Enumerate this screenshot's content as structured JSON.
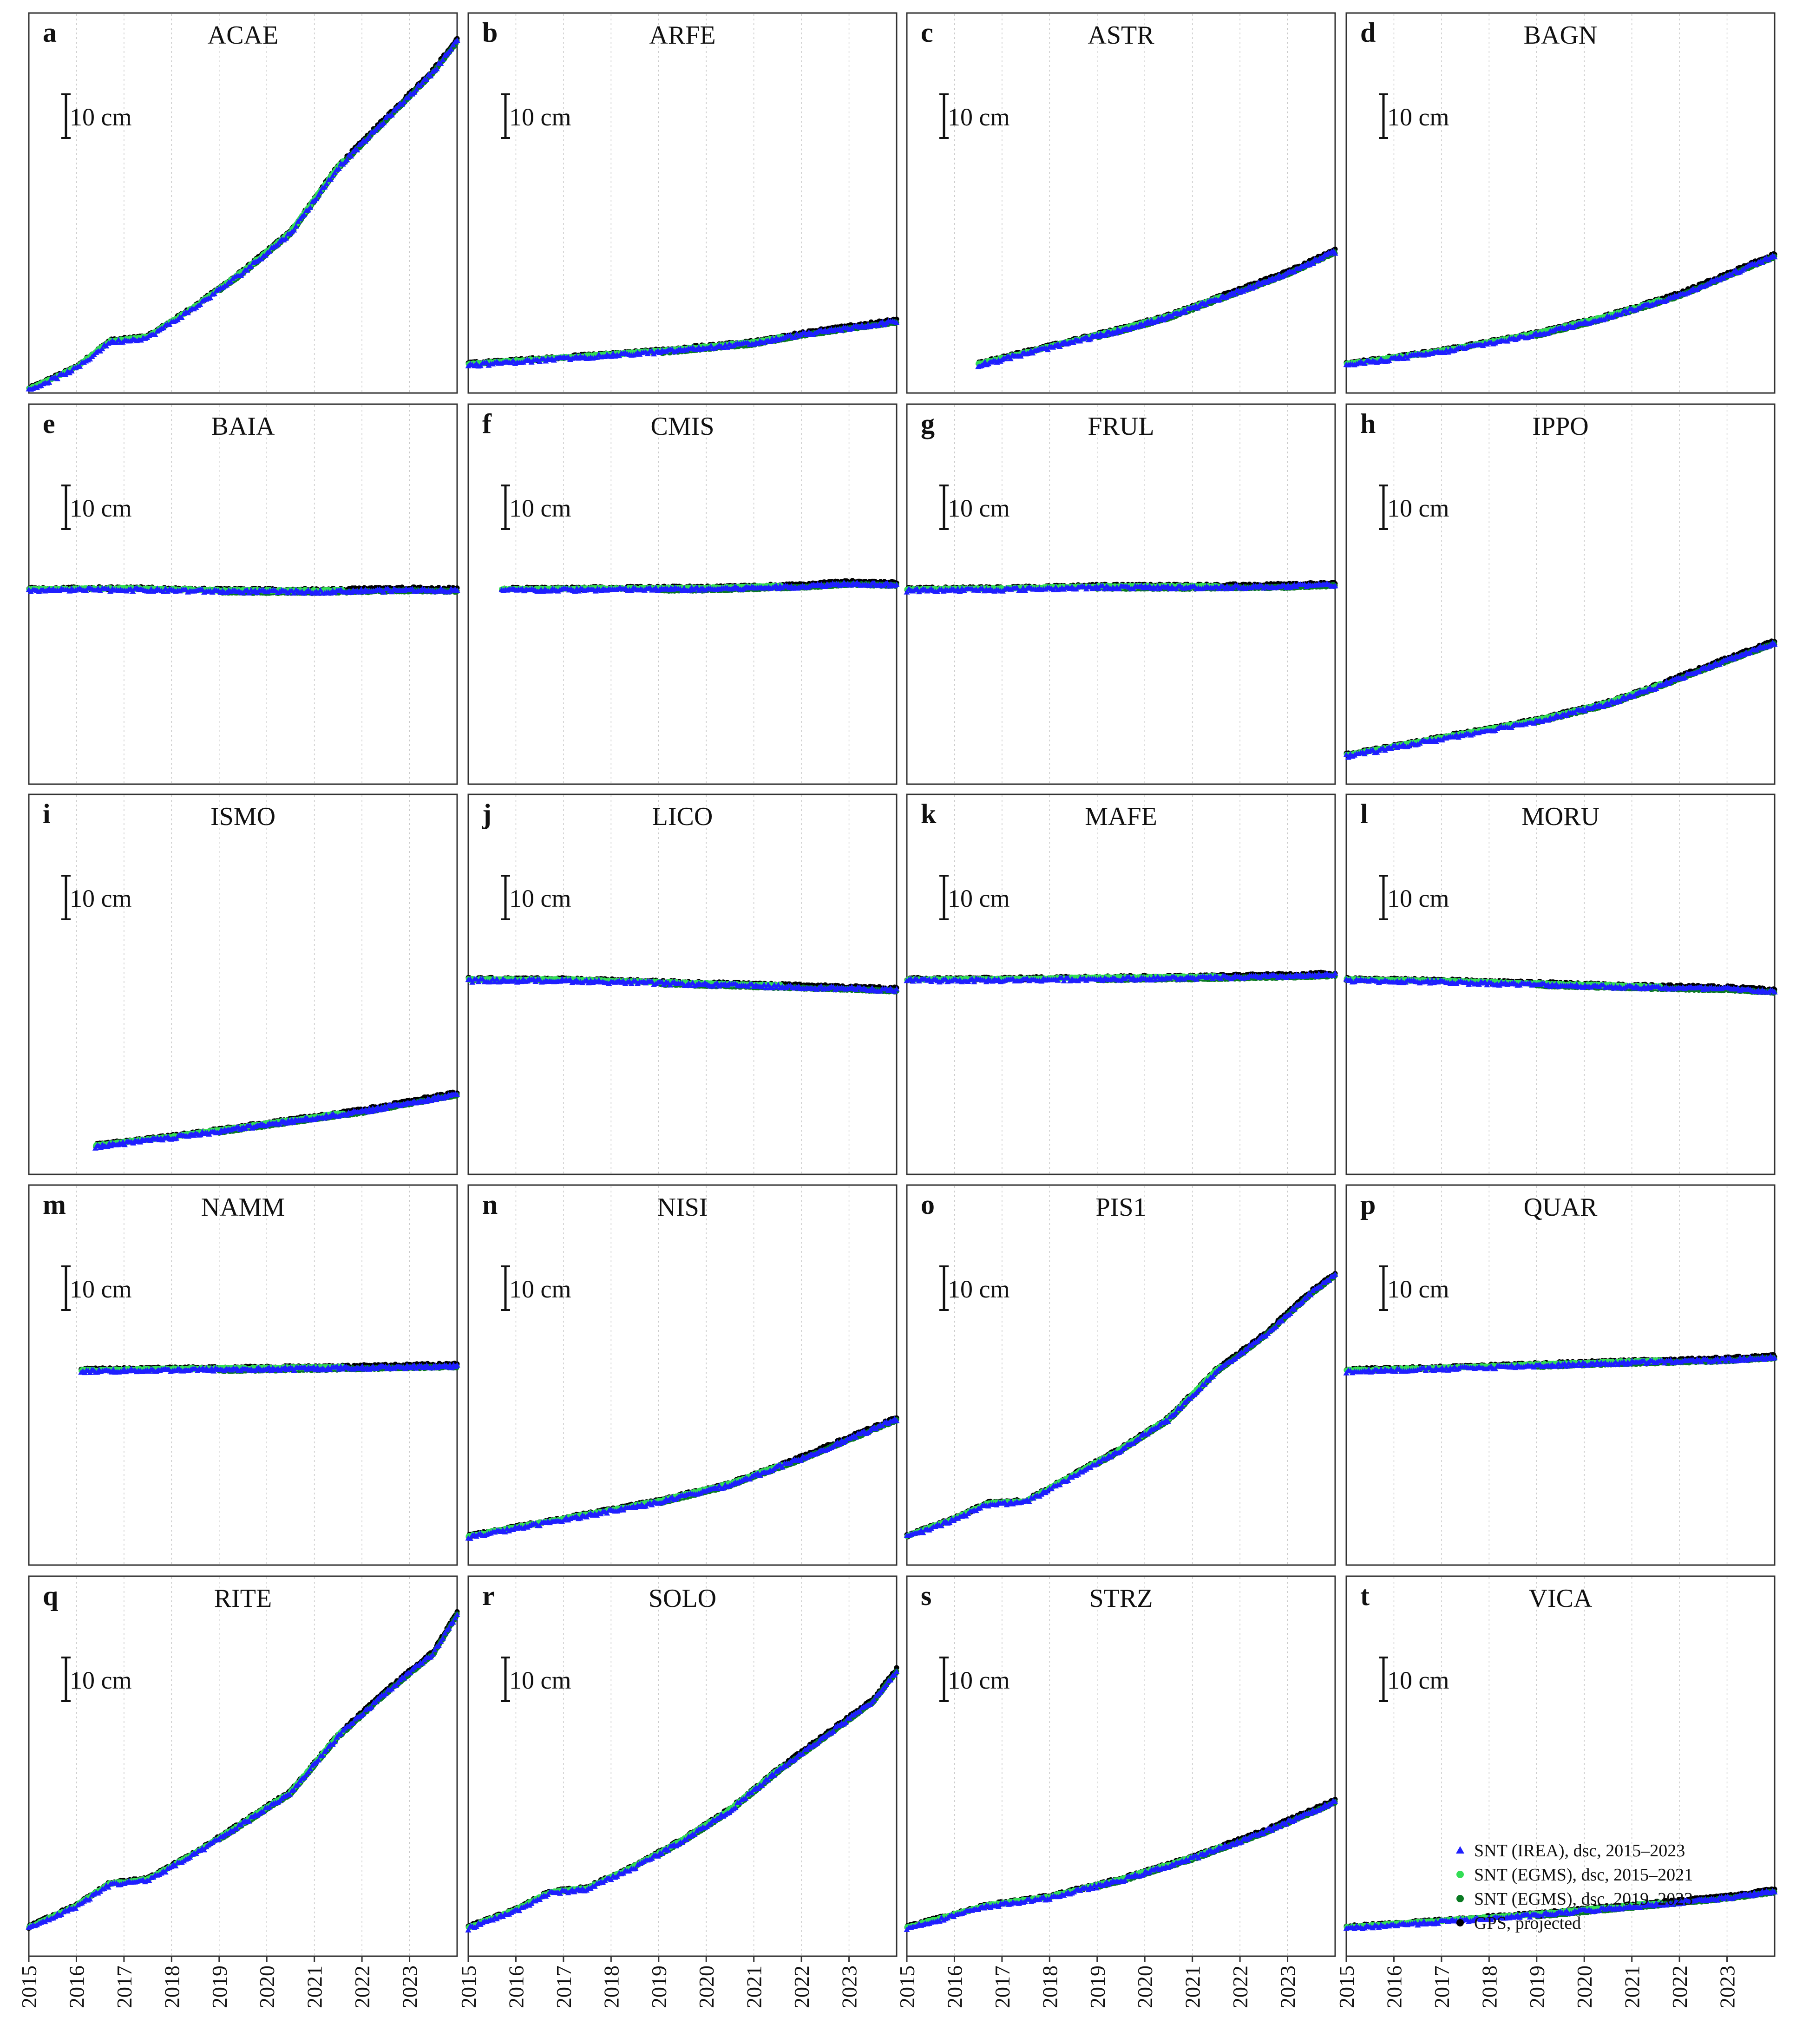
{
  "chart_data": {
    "type": "scatter",
    "x_unit": "year",
    "xlim": [
      2015.0,
      2024.0
    ],
    "x_ticks": [
      2015,
      2016,
      2017,
      2018,
      2019,
      2020,
      2021,
      2022,
      2023
    ],
    "x_tick_labels": [
      "2015",
      "2016",
      "2017",
      "2018",
      "2019",
      "2020",
      "2021",
      "2022",
      "2023"
    ],
    "y_unit": "cm",
    "ylim": [
      -20,
      60
    ],
    "scale_bar_label": "10 cm",
    "scale_bar_value": 10,
    "legend": [
      {
        "key": "irea",
        "label": "SNT (IREA), dsc, 2015–2023",
        "color": "#1f1fff",
        "marker": "triangle"
      },
      {
        "key": "egms1",
        "label": "SNT (EGMS), dsc, 2015–2021",
        "color": "#33dd55",
        "marker": "circle"
      },
      {
        "key": "egms2",
        "label": "SNT (EGMS), dsc, 2019–2023",
        "color": "#0a7a22",
        "marker": "circle"
      },
      {
        "key": "gps",
        "label": "GPS, projected",
        "color": "#000000",
        "marker": "circle"
      }
    ],
    "panels": [
      {
        "letter": "a",
        "station": "ACAE",
        "start": 2015.0,
        "y": [
          [
            2015.0,
            0
          ],
          [
            2016.0,
            5
          ],
          [
            2016.7,
            11
          ],
          [
            2017.5,
            12
          ],
          [
            2018.5,
            19
          ],
          [
            2019.5,
            27
          ],
          [
            2020.5,
            36
          ],
          [
            2021.5,
            51
          ],
          [
            2022.5,
            62
          ],
          [
            2023.5,
            73
          ],
          [
            2024.0,
            80
          ]
        ]
      },
      {
        "letter": "b",
        "station": "ARFE",
        "start": 2015.0,
        "y": [
          [
            2015.0,
            0
          ],
          [
            2017.0,
            1.5
          ],
          [
            2019.0,
            3
          ],
          [
            2021.0,
            5
          ],
          [
            2022.0,
            7
          ],
          [
            2024.0,
            10
          ]
        ]
      },
      {
        "letter": "c",
        "station": "ASTR",
        "start": 2016.5,
        "y": [
          [
            2016.5,
            0
          ],
          [
            2018.0,
            4
          ],
          [
            2019.5,
            8
          ],
          [
            2020.5,
            11
          ],
          [
            2022.0,
            17
          ],
          [
            2023.0,
            21
          ],
          [
            2024.0,
            26
          ]
        ]
      },
      {
        "letter": "d",
        "station": "BAGN",
        "start": 2015.0,
        "y": [
          [
            2015.0,
            0
          ],
          [
            2017.0,
            3
          ],
          [
            2019.0,
            7
          ],
          [
            2020.5,
            11
          ],
          [
            2022.0,
            16
          ],
          [
            2024.0,
            25
          ]
        ]
      },
      {
        "letter": "e",
        "station": "BAIA",
        "start": 2015.0,
        "y": [
          [
            2015.0,
            0
          ],
          [
            2017.0,
            0.2
          ],
          [
            2019.0,
            -0.2
          ],
          [
            2021.0,
            -0.3
          ],
          [
            2023.0,
            0.1
          ],
          [
            2024.0,
            0
          ]
        ]
      },
      {
        "letter": "f",
        "station": "CMIS",
        "start": 2015.7,
        "y": [
          [
            2015.7,
            0
          ],
          [
            2018.0,
            0.2
          ],
          [
            2020.0,
            0.3
          ],
          [
            2022.0,
            0.9
          ],
          [
            2023.0,
            1.6
          ],
          [
            2024.0,
            1.3
          ]
        ]
      },
      {
        "letter": "g",
        "station": "FRUL",
        "start": 2015.0,
        "y": [
          [
            2015.0,
            0
          ],
          [
            2017.0,
            0.2
          ],
          [
            2019.0,
            0.7
          ],
          [
            2021.0,
            0.7
          ],
          [
            2023.0,
            0.9
          ],
          [
            2024.0,
            1.3
          ]
        ]
      },
      {
        "letter": "h",
        "station": "IPPO",
        "start": 2015.0,
        "y": [
          [
            2015.0,
            0
          ],
          [
            2017.0,
            4
          ],
          [
            2019.0,
            8
          ],
          [
            2020.5,
            12
          ],
          [
            2021.3,
            15
          ],
          [
            2022.5,
            20
          ],
          [
            2024.0,
            26
          ]
        ]
      },
      {
        "letter": "i",
        "station": "ISMO",
        "start": 2016.4,
        "y": [
          [
            2016.4,
            0
          ],
          [
            2018.0,
            2
          ],
          [
            2020.0,
            5
          ],
          [
            2022.0,
            8
          ],
          [
            2024.0,
            12
          ]
        ]
      },
      {
        "letter": "j",
        "station": "LICO",
        "start": 2015.0,
        "y": [
          [
            2015.0,
            0
          ],
          [
            2017.0,
            0
          ],
          [
            2019.0,
            -0.6
          ],
          [
            2021.0,
            -1.2
          ],
          [
            2023.0,
            -1.8
          ],
          [
            2024.0,
            -2.2
          ]
        ]
      },
      {
        "letter": "k",
        "station": "MAFE",
        "start": 2015.0,
        "y": [
          [
            2015.0,
            0
          ],
          [
            2017.0,
            0.1
          ],
          [
            2019.0,
            0.4
          ],
          [
            2021.0,
            0.6
          ],
          [
            2023.0,
            1.0
          ],
          [
            2024.0,
            1.3
          ]
        ]
      },
      {
        "letter": "l",
        "station": "MORU",
        "start": 2015.0,
        "y": [
          [
            2015.0,
            0
          ],
          [
            2017.0,
            -0.3
          ],
          [
            2019.0,
            -0.9
          ],
          [
            2021.0,
            -1.5
          ],
          [
            2023.0,
            -1.9
          ],
          [
            2024.0,
            -2.5
          ]
        ]
      },
      {
        "letter": "m",
        "station": "NAMM",
        "start": 2016.1,
        "y": [
          [
            2016.1,
            0
          ],
          [
            2018.0,
            0.3
          ],
          [
            2020.0,
            0.5
          ],
          [
            2022.0,
            0.8
          ],
          [
            2024.0,
            1.2
          ]
        ]
      },
      {
        "letter": "n",
        "station": "NISI",
        "start": 2015.0,
        "y": [
          [
            2015.0,
            0
          ],
          [
            2017.0,
            4
          ],
          [
            2019.0,
            8
          ],
          [
            2020.5,
            12
          ],
          [
            2022.0,
            18
          ],
          [
            2024.0,
            27
          ]
        ]
      },
      {
        "letter": "o",
        "station": "PIS1",
        "start": 2015.0,
        "y": [
          [
            2015.0,
            0
          ],
          [
            2016.0,
            4
          ],
          [
            2016.7,
            7.5
          ],
          [
            2017.5,
            8
          ],
          [
            2018.5,
            14
          ],
          [
            2019.5,
            20
          ],
          [
            2020.5,
            27
          ],
          [
            2021.5,
            38
          ],
          [
            2022.5,
            46
          ],
          [
            2023.5,
            56
          ],
          [
            2024.0,
            60
          ]
        ]
      },
      {
        "letter": "p",
        "station": "QUAR",
        "start": 2015.0,
        "y": [
          [
            2015.0,
            0
          ],
          [
            2017.0,
            0.5
          ],
          [
            2019.0,
            1.3
          ],
          [
            2021.0,
            2.0
          ],
          [
            2023.0,
            2.6
          ],
          [
            2024.0,
            3.2
          ]
        ]
      },
      {
        "letter": "q",
        "station": "RITE",
        "start": 2015.0,
        "y": [
          [
            2015.0,
            0
          ],
          [
            2016.0,
            5
          ],
          [
            2016.7,
            10
          ],
          [
            2017.5,
            11
          ],
          [
            2018.5,
            17
          ],
          [
            2019.5,
            24
          ],
          [
            2020.5,
            31
          ],
          [
            2021.5,
            44
          ],
          [
            2022.5,
            54
          ],
          [
            2023.5,
            63
          ],
          [
            2024.0,
            72
          ]
        ]
      },
      {
        "letter": "r",
        "station": "SOLO",
        "start": 2015.0,
        "y": [
          [
            2015.0,
            0
          ],
          [
            2016.0,
            4
          ],
          [
            2016.7,
            8
          ],
          [
            2017.5,
            9
          ],
          [
            2018.5,
            14
          ],
          [
            2019.5,
            20
          ],
          [
            2020.5,
            27
          ],
          [
            2021.5,
            36
          ],
          [
            2022.5,
            44
          ],
          [
            2023.5,
            52
          ],
          [
            2024.0,
            59
          ]
        ]
      },
      {
        "letter": "s",
        "station": "STRZ",
        "start": 2015.0,
        "y": [
          [
            2015.0,
            0
          ],
          [
            2016.7,
            5
          ],
          [
            2018.0,
            7
          ],
          [
            2019.5,
            11
          ],
          [
            2021.0,
            16
          ],
          [
            2022.5,
            22
          ],
          [
            2024.0,
            29
          ]
        ]
      },
      {
        "letter": "t",
        "station": "VICA",
        "start": 2015.0,
        "y": [
          [
            2015.0,
            0
          ],
          [
            2017.0,
            1.5
          ],
          [
            2019.0,
            3
          ],
          [
            2021.0,
            5
          ],
          [
            2023.0,
            7
          ],
          [
            2024.0,
            8.5
          ]
        ]
      }
    ]
  }
}
